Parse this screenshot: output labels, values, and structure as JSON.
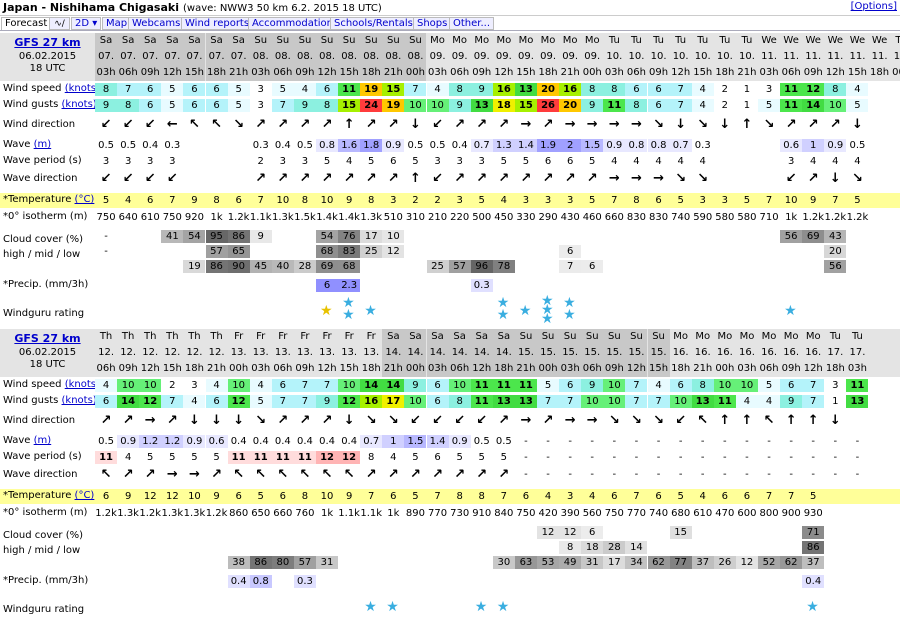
{
  "title": {
    "main": "Japan - Nishihama Chigasaki",
    "sub": "(wave: NWW3 50 km 6.2. 2015 18 UTC)",
    "options": "[Options]"
  },
  "tabs": [
    "Forecast",
    "2D",
    "Map",
    "Webcams",
    "Wind reports",
    "Accommodation",
    "Schools/Rentals",
    "Shops",
    "Other..."
  ],
  "colors": {
    "tab_link": "#0000cc",
    "header_bg": "#e4e4e4",
    "weekend_bg": "#c8c8c8",
    "temp_bg": "#ffff99"
  },
  "labels": {
    "wind_speed": "Wind speed",
    "wind_gusts": "Wind gusts",
    "knots": "(knots)",
    "wind_direction": "Wind direction",
    "wave": "Wave",
    "m": "(m)",
    "wave_period": "Wave period (s)",
    "wave_direction": "Wave direction",
    "temperature": "*Temperature",
    "celsius": "(°C)",
    "isotherm": "*0° isotherm (m)",
    "cloud": "Cloud cover (%)",
    "cloud2": "high / mid / low",
    "precip": "*Precip. (mm/3h)",
    "rating": "Windguru rating"
  },
  "blocks": [
    {
      "model": "GFS 27 km",
      "date": "06.02.2015",
      "run": "18 UTC",
      "days": [
        "Sa",
        "Sa",
        "Sa",
        "Sa",
        "Sa",
        "Sa",
        "Sa",
        "Su",
        "Su",
        "Su",
        "Su",
        "Su",
        "Su",
        "Su",
        "Su",
        "Mo",
        "Mo",
        "Mo",
        "Mo",
        "Mo",
        "Mo",
        "Mo",
        "Mo",
        "Tu",
        "Tu",
        "Tu",
        "Tu",
        "Tu",
        "Tu",
        "Tu",
        "We",
        "We",
        "We",
        "We",
        "We",
        "We",
        "Th"
      ],
      "dates": [
        "07.",
        "07.",
        "07.",
        "07.",
        "07.",
        "07.",
        "07.",
        "08.",
        "08.",
        "08.",
        "08.",
        "08.",
        "08.",
        "08.",
        "08.",
        "09.",
        "09.",
        "09.",
        "09.",
        "09.",
        "09.",
        "09.",
        "09.",
        "10.",
        "10.",
        "10.",
        "10.",
        "10.",
        "10.",
        "10.",
        "11.",
        "11.",
        "11.",
        "11.",
        "11.",
        "11.",
        "12."
      ],
      "hours": [
        "03h",
        "06h",
        "09h",
        "12h",
        "15h",
        "18h",
        "21h",
        "03h",
        "06h",
        "09h",
        "12h",
        "15h",
        "18h",
        "21h",
        "00h",
        "03h",
        "06h",
        "09h",
        "12h",
        "15h",
        "18h",
        "21h",
        "00h",
        "03h",
        "06h",
        "09h",
        "12h",
        "15h",
        "18h",
        "21h",
        "03h",
        "06h",
        "09h",
        "12h",
        "15h",
        "18h",
        "00h"
      ],
      "wind_speed": [
        "8",
        "7",
        "6",
        "5",
        "6",
        "6",
        "5",
        "3",
        "5",
        "4",
        "6",
        "11",
        "19",
        "15",
        "7",
        "4",
        "8",
        "9",
        "16",
        "13",
        "20",
        "16",
        "8",
        "8",
        "6",
        "6",
        "7",
        "4",
        "2",
        "1",
        "3",
        "11",
        "12",
        "8",
        "4",
        "",
        ""
      ],
      "wind_gusts": [
        "9",
        "8",
        "6",
        "5",
        "6",
        "6",
        "5",
        "3",
        "7",
        "9",
        "8",
        "15",
        "24",
        "19",
        "10",
        "10",
        "9",
        "13",
        "18",
        "15",
        "26",
        "20",
        "9",
        "11",
        "8",
        "6",
        "7",
        "4",
        "2",
        "1",
        "5",
        "11",
        "14",
        "10",
        "5",
        "",
        ""
      ],
      "wind_dir": [
        "↙",
        "↙",
        "↙",
        "←",
        "↖",
        "↖",
        "↘",
        "↗",
        "↗",
        "↗",
        "↗",
        "↑",
        "↗",
        "↗",
        "↓",
        "↙",
        "↗",
        "↗",
        "↗",
        "→",
        "↗",
        "→",
        "→",
        "→",
        "→",
        "↘",
        "↓",
        "↘",
        "↓",
        "↑",
        "↘",
        "↗",
        "↗",
        "↗",
        "↓",
        "",
        ""
      ],
      "wave": [
        "0.5",
        "0.5",
        "0.4",
        "0.3",
        "",
        "",
        "",
        "0.3",
        "0.4",
        "0.5",
        "0.8",
        "1.6",
        "1.8",
        "0.9",
        "0.5",
        "0.5",
        "0.4",
        "0.7",
        "1.3",
        "1.4",
        "1.9",
        "2",
        "1.5",
        "0.9",
        "0.8",
        "0.8",
        "0.7",
        "0.3",
        "",
        "",
        "",
        "0.6",
        "1",
        "0.9",
        "0.5",
        "",
        ""
      ],
      "wave_period": [
        "3",
        "3",
        "3",
        "3",
        "",
        "",
        "",
        "2",
        "3",
        "3",
        "5",
        "4",
        "5",
        "6",
        "5",
        "3",
        "3",
        "3",
        "5",
        "5",
        "6",
        "6",
        "5",
        "4",
        "4",
        "4",
        "4",
        "4",
        "",
        "",
        "",
        "3",
        "4",
        "4",
        "4",
        "",
        ""
      ],
      "wave_dir": [
        "↙",
        "↙",
        "↙",
        "↙",
        "",
        "",
        "",
        "↗",
        "↗",
        "↗",
        "↗",
        "↗",
        "↗",
        "↗",
        "↑",
        "↙",
        "↗",
        "↗",
        "↗",
        "↗",
        "↗",
        "↗",
        "↗",
        "→",
        "→",
        "→",
        "↘",
        "↘",
        "",
        "",
        "",
        "↙",
        "↗",
        "↓",
        "↘",
        "",
        ""
      ],
      "temp": [
        "5",
        "4",
        "6",
        "7",
        "9",
        "8",
        "6",
        "7",
        "10",
        "8",
        "10",
        "9",
        "8",
        "3",
        "2",
        "2",
        "3",
        "5",
        "4",
        "3",
        "3",
        "3",
        "5",
        "7",
        "8",
        "6",
        "5",
        "3",
        "3",
        "5",
        "7",
        "10",
        "9",
        "7",
        "5",
        "",
        ""
      ],
      "iso": [
        "750",
        "640",
        "610",
        "750",
        "920",
        "1k",
        "1.2k",
        "1.1k",
        "1.3k",
        "1.5k",
        "1.4k",
        "1.4k",
        "1.3k",
        "510",
        "310",
        "210",
        "220",
        "500",
        "450",
        "330",
        "290",
        "430",
        "460",
        "660",
        "830",
        "830",
        "740",
        "590",
        "580",
        "580",
        "710",
        "1k",
        "1.2k",
        "1.2k",
        "1.2k",
        "",
        ""
      ],
      "cloud_high": [
        "-",
        "",
        "",
        "41",
        "54",
        "95",
        "86",
        "9",
        "",
        "",
        "54",
        "76",
        "17",
        "10",
        "",
        "",
        "",
        "",
        "",
        "",
        "",
        "",
        "",
        "",
        "",
        "",
        "",
        "",
        "",
        "",
        "",
        "56",
        "69",
        "43",
        "",
        "",
        ""
      ],
      "cloud_mid": [
        "-",
        "",
        "",
        "",
        "",
        "57",
        "65",
        "",
        "",
        "",
        "68",
        "83",
        "25",
        "12",
        "",
        "",
        "",
        "",
        "",
        "",
        "",
        "6",
        "",
        "",
        "",
        "",
        "",
        "",
        "",
        "",
        "",
        "",
        "",
        "20",
        "",
        "",
        ""
      ],
      "cloud_low": [
        "",
        "",
        "",
        "",
        "19",
        "86",
        "90",
        "45",
        "40",
        "28",
        "69",
        "68",
        "",
        "",
        "",
        "25",
        "57",
        "96",
        "78",
        "",
        "",
        "7",
        "6",
        "",
        "",
        "",
        "",
        "",
        "",
        "",
        "",
        "",
        "",
        "56",
        "",
        "",
        ""
      ],
      "precip": [
        "",
        "",
        "",
        "",
        "",
        "",
        "",
        "",
        "",
        "",
        "6",
        "2.3",
        "",
        "",
        "",
        "",
        "",
        "0.3",
        "",
        "",
        "",
        "",
        "",
        "",
        "",
        "",
        "",
        "",
        "",
        "",
        "",
        "",
        "",
        "",
        "",
        "",
        ""
      ],
      "rating": [
        "",
        "",
        "",
        "",
        "",
        "",
        "",
        "",
        "",
        "",
        "1g",
        "2",
        "1",
        "",
        "",
        "",
        "",
        "",
        "2",
        "1",
        "3",
        "2",
        "",
        "",
        "",
        "",
        "",
        "",
        "",
        "",
        "",
        "1",
        "",
        "",
        "",
        "",
        ""
      ]
    },
    {
      "model": "GFS 27 km",
      "date": "06.02.2015",
      "run": "18 UTC",
      "days": [
        "Th",
        "Th",
        "Th",
        "Th",
        "Th",
        "Th",
        "Fr",
        "Fr",
        "Fr",
        "Fr",
        "Fr",
        "Fr",
        "Fr",
        "Sa",
        "Sa",
        "Sa",
        "Sa",
        "Sa",
        "Sa",
        "Su",
        "Su",
        "Su",
        "Su",
        "Su",
        "Su",
        "Su",
        "Mo",
        "Mo",
        "Mo",
        "Mo",
        "Mo",
        "Mo",
        "Mo",
        "Tu",
        "Tu",
        "",
        ""
      ],
      "dates": [
        "12.",
        "12.",
        "12.",
        "12.",
        "12.",
        "12.",
        "13.",
        "13.",
        "13.",
        "13.",
        "13.",
        "13.",
        "13.",
        "14.",
        "14.",
        "14.",
        "14.",
        "14.",
        "14.",
        "15.",
        "15.",
        "15.",
        "15.",
        "15.",
        "15.",
        "15.",
        "16.",
        "16.",
        "16.",
        "16.",
        "16.",
        "16.",
        "16.",
        "17.",
        "17.",
        "",
        ""
      ],
      "hours": [
        "06h",
        "09h",
        "12h",
        "15h",
        "18h",
        "21h",
        "00h",
        "03h",
        "06h",
        "09h",
        "12h",
        "15h",
        "18h",
        "21h",
        "00h",
        "03h",
        "06h",
        "12h",
        "18h",
        "21h",
        "00h",
        "03h",
        "06h",
        "09h",
        "12h",
        "15h",
        "18h",
        "21h",
        "00h",
        "03h",
        "06h",
        "09h",
        "12h",
        "18h",
        "03h",
        "",
        ""
      ],
      "wind_speed": [
        "4",
        "10",
        "10",
        "2",
        "3",
        "4",
        "10",
        "4",
        "6",
        "7",
        "7",
        "10",
        "14",
        "14",
        "9",
        "6",
        "10",
        "11",
        "11",
        "11",
        "5",
        "6",
        "9",
        "10",
        "7",
        "4",
        "6",
        "8",
        "10",
        "10",
        "5",
        "6",
        "7",
        "3",
        "11",
        "",
        ""
      ],
      "wind_gusts": [
        "6",
        "14",
        "12",
        "7",
        "4",
        "6",
        "12",
        "5",
        "7",
        "7",
        "9",
        "12",
        "16",
        "17",
        "10",
        "6",
        "8",
        "11",
        "13",
        "13",
        "7",
        "7",
        "10",
        "10",
        "7",
        "7",
        "10",
        "13",
        "11",
        "4",
        "4",
        "9",
        "7",
        "1",
        "13",
        "",
        ""
      ],
      "wind_dir": [
        "↗",
        "↗",
        "→",
        "↗",
        "↓",
        "↓",
        "↓",
        "↘",
        "↗",
        "↗",
        "↗",
        "↓",
        "↘",
        "↘",
        "↙",
        "↙",
        "↙",
        "↙",
        "↗",
        "→",
        "↗",
        "→",
        "→",
        "↘",
        "↘",
        "↘",
        "↙",
        "↖",
        "↑",
        "↑",
        "↖",
        "↑",
        "↑",
        "↓",
        "",
        ""
      ],
      "wave": [
        "0.5",
        "0.9",
        "1.2",
        "1.2",
        "0.9",
        "0.6",
        "0.4",
        "0.4",
        "0.4",
        "0.4",
        "0.4",
        "0.4",
        "0.7",
        "1",
        "1.5",
        "1.4",
        "0.9",
        "0.5",
        "0.5",
        "-",
        "-",
        "-",
        "-",
        "-",
        "-",
        "-",
        "-",
        "-",
        "-",
        "-",
        "-",
        "-",
        "-",
        "-",
        "-",
        "",
        ""
      ],
      "wave_period": [
        "11",
        "4",
        "5",
        "5",
        "5",
        "5",
        "11",
        "11",
        "11",
        "11",
        "12",
        "12",
        "8",
        "4",
        "5",
        "6",
        "5",
        "5",
        "5",
        "-",
        "-",
        "-",
        "-",
        "-",
        "-",
        "-",
        "-",
        "-",
        "-",
        "-",
        "-",
        "-",
        "-",
        "-",
        "-",
        "",
        ""
      ],
      "wave_dir": [
        "↖",
        "↗",
        "↗",
        "→",
        "→",
        "↗",
        "↖",
        "↖",
        "↖",
        "↖",
        "↖",
        "↖",
        "↗",
        "↗",
        "↗",
        "↗",
        "↗",
        "↗",
        "↗",
        "-",
        "-",
        "-",
        "-",
        "-",
        "-",
        "-",
        "-",
        "-",
        "-",
        "-",
        "-",
        "-",
        "-",
        "-",
        "-",
        "",
        ""
      ],
      "temp": [
        "6",
        "9",
        "12",
        "12",
        "10",
        "9",
        "6",
        "5",
        "6",
        "8",
        "10",
        "9",
        "7",
        "6",
        "5",
        "7",
        "8",
        "8",
        "7",
        "6",
        "4",
        "3",
        "4",
        "6",
        "7",
        "6",
        "5",
        "4",
        "6",
        "6",
        "7",
        "7",
        "5",
        "",
        "",
        "",
        ""
      ],
      "iso": [
        "1.2k",
        "1.3k",
        "1.2k",
        "1.3k",
        "1.3k",
        "1.2k",
        "860",
        "650",
        "660",
        "760",
        "1k",
        "1.1k",
        "1.1k",
        "1k",
        "890",
        "770",
        "730",
        "910",
        "840",
        "750",
        "420",
        "390",
        "560",
        "750",
        "770",
        "740",
        "680",
        "610",
        "470",
        "600",
        "800",
        "900",
        "930",
        "",
        "",
        "",
        ""
      ],
      "cloud_high": [
        "",
        "",
        "",
        "",
        "",
        "",
        "",
        "",
        "",
        "",
        "",
        "",
        "",
        "",
        "",
        "",
        "",
        "",
        "",
        "",
        "12",
        "12",
        "6",
        "",
        "",
        "",
        "15",
        "",
        "",
        "",
        "",
        "",
        "71",
        "",
        "",
        "",
        ""
      ],
      "cloud_mid": [
        "",
        "",
        "",
        "",
        "",
        "",
        "",
        "",
        "",
        "",
        "",
        "",
        "",
        "",
        "",
        "",
        "",
        "",
        "",
        "",
        "",
        "8",
        "18",
        "28",
        "14",
        "",
        "",
        "",
        "",
        "",
        "",
        "",
        "86",
        "",
        "",
        "",
        ""
      ],
      "cloud_low": [
        "",
        "",
        "",
        "",
        "",
        "",
        "38",
        "86",
        "80",
        "57",
        "31",
        "",
        "",
        "",
        "",
        "",
        "",
        "",
        "30",
        "63",
        "53",
        "49",
        "31",
        "17",
        "34",
        "62",
        "77",
        "37",
        "26",
        "12",
        "52",
        "62",
        "37",
        "",
        "",
        "",
        ""
      ],
      "precip": [
        "",
        "",
        "",
        "",
        "",
        "",
        "0.4",
        "0.8",
        "",
        "0.3",
        "",
        "",
        "",
        "",
        "",
        "",
        "",
        "",
        "",
        "",
        "",
        "",
        "",
        "",
        "",
        "",
        "",
        "",
        "",
        "",
        "",
        "",
        "0.4",
        "",
        "",
        "",
        ""
      ],
      "rating": [
        "",
        "",
        "",
        "",
        "",
        "",
        "",
        "",
        "",
        "",
        "",
        "",
        "1",
        "1",
        "",
        "",
        "",
        "1",
        "1",
        "",
        "",
        "",
        "",
        "",
        "",
        "",
        "",
        "",
        "",
        "",
        "",
        "",
        "1",
        "",
        "",
        "",
        ""
      ]
    }
  ]
}
